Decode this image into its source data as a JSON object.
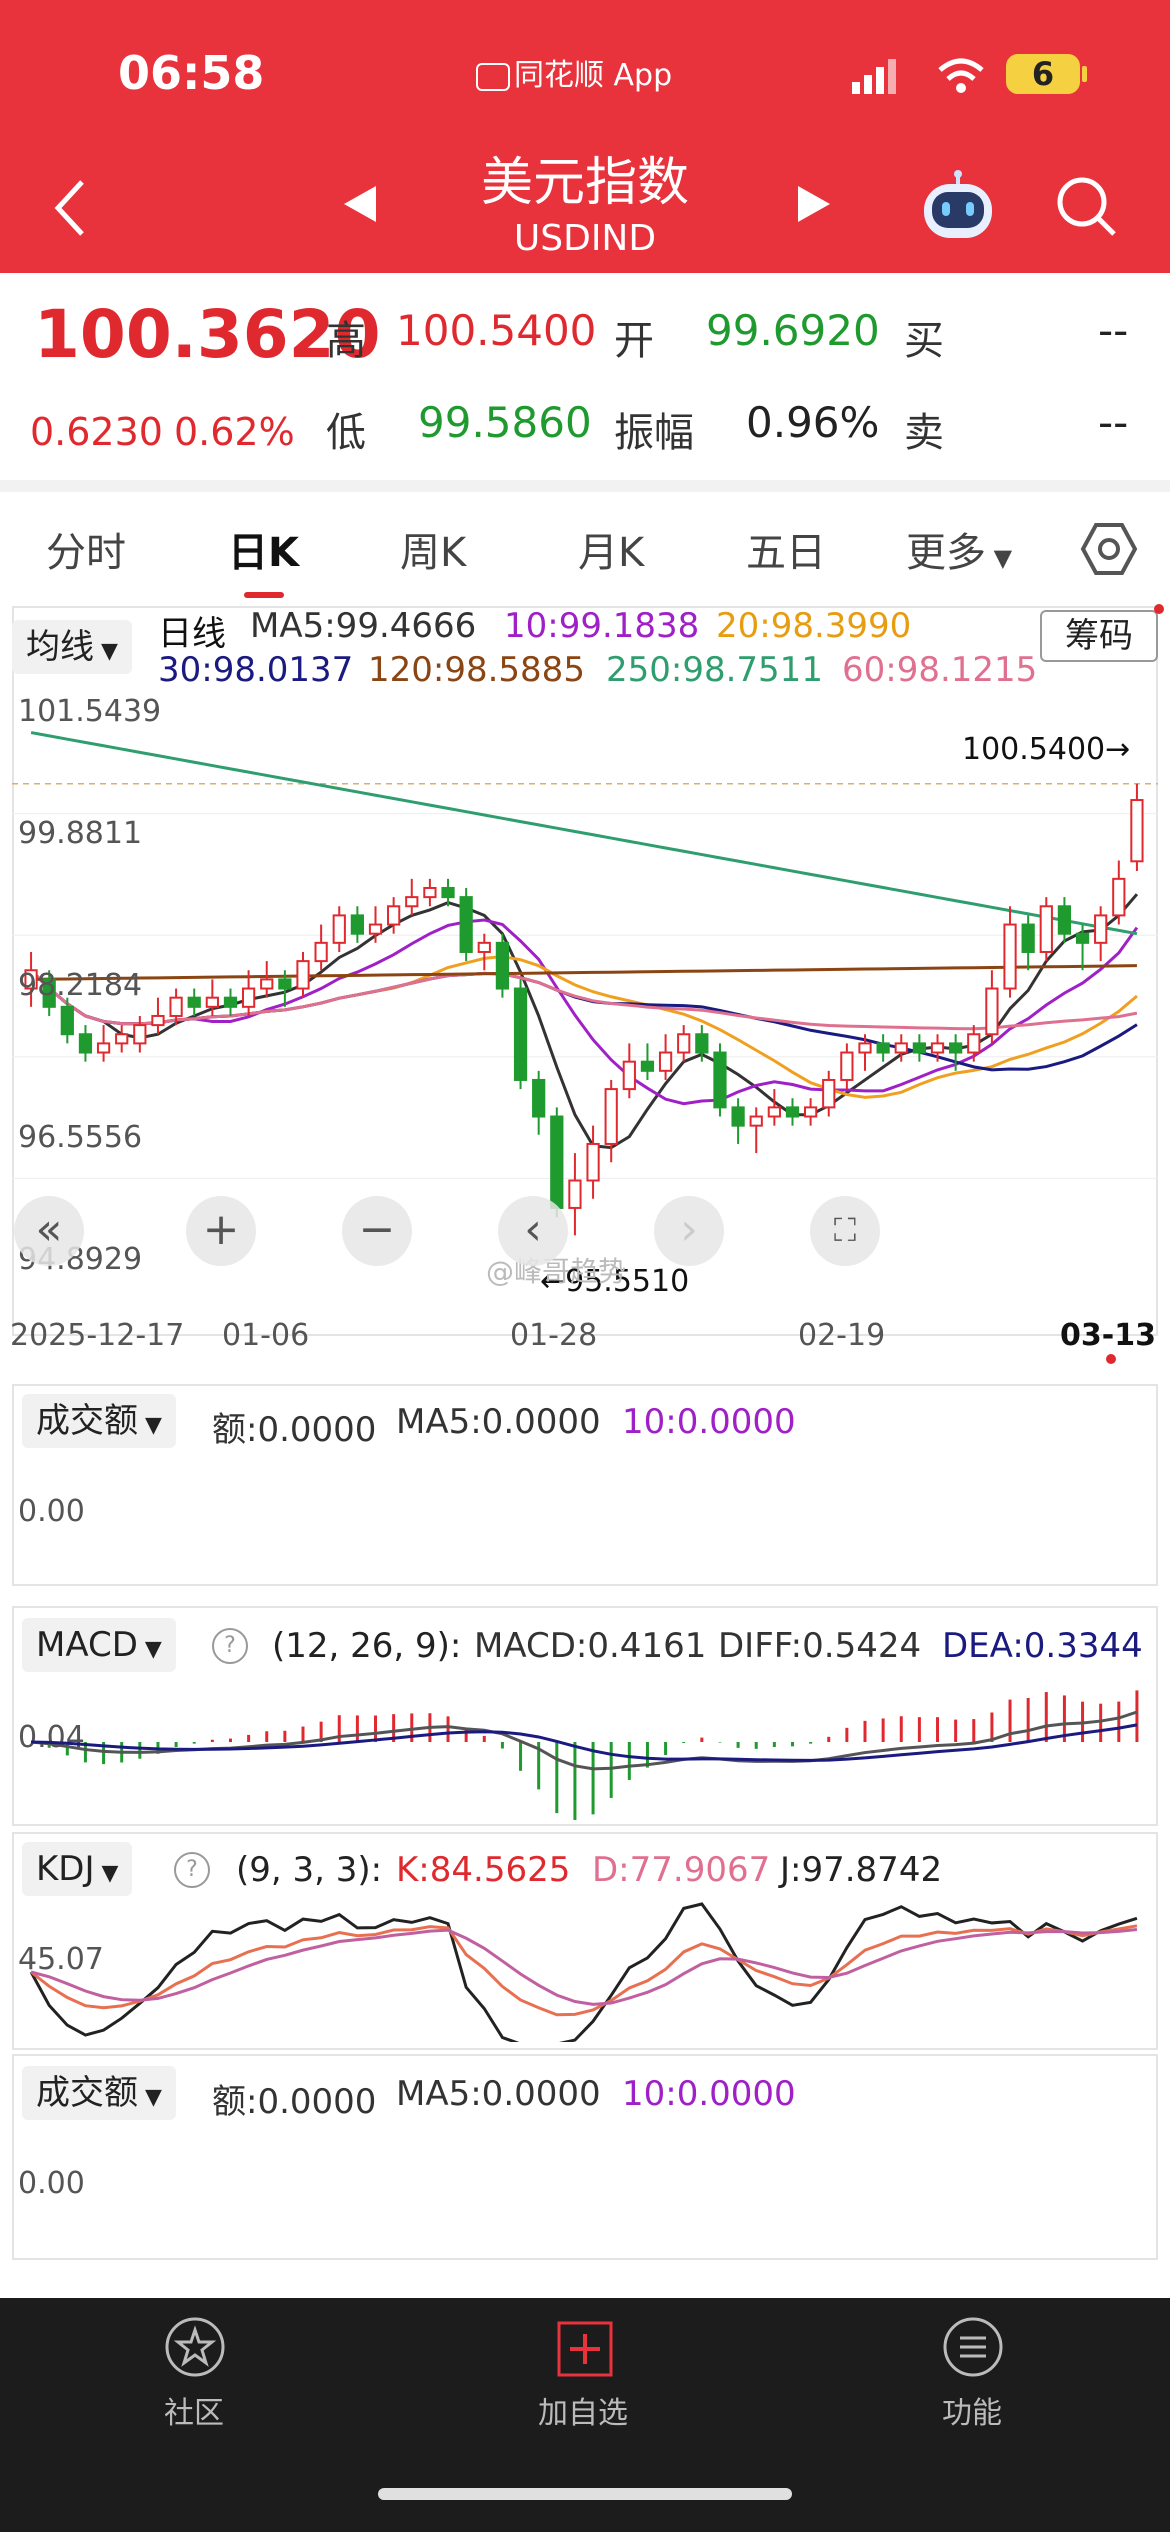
{
  "status_bar": {
    "time": "06:58",
    "app_name": "同花顺 App",
    "battery": "6"
  },
  "header": {
    "title": "美元指数",
    "code": "USDIND"
  },
  "quote": {
    "price": "100.3620",
    "change": "0.6230",
    "change_pct": "0.62%",
    "high_label": "高",
    "high": "100.5400",
    "open_label": "开",
    "open": "99.6920",
    "buy_label": "买",
    "buy": "--",
    "low_label": "低",
    "low": "99.5860",
    "amp_label": "振幅",
    "amp": "0.96%",
    "sell_label": "卖",
    "sell": "--"
  },
  "tabs": [
    "分时",
    "日K",
    "周K",
    "月K",
    "五日",
    "更多"
  ],
  "active_tab": "日K",
  "main_chart": {
    "ma_button": "均线",
    "chip_button": "筹码",
    "period_label": "日线",
    "ma5": "MA5:99.4666",
    "ma10": "10:99.1838",
    "ma20": "20:98.3990",
    "ma30": "30:98.0137",
    "ma120": "120:98.5885",
    "ma250": "250:98.7511",
    "ma60": "60:98.1215",
    "y_ticks": [
      "101.5439",
      "99.8811",
      "98.2184",
      "96.5556",
      "94.8929"
    ],
    "high_marker": "100.5400→",
    "low_marker": "←95.5510",
    "x_ticks": [
      "2025-12-17",
      "01-06",
      "01-28",
      "02-19",
      "03-13"
    ],
    "watermark": "@峰哥趋势"
  },
  "volume_panel": {
    "button": "成交额",
    "amount": "额:0.0000",
    "ma5": "MA5:0.0000",
    "ma10": "10:0.0000",
    "y_tick": "0.00"
  },
  "macd_panel": {
    "button": "MACD",
    "params": "(12, 26, 9):",
    "macd": "MACD:0.4161",
    "diff": "DIFF:0.5424",
    "dea": "DEA:0.3344",
    "y_tick": "0.04"
  },
  "kdj_panel": {
    "button": "KDJ",
    "params": "(9, 3, 3):",
    "k": "K:84.5625",
    "d": "D:77.9067",
    "j": "J:97.8742",
    "y_tick": "45.07"
  },
  "volume_panel2": {
    "button": "成交额",
    "amount": "额:0.0000",
    "ma5": "MA5:0.0000",
    "ma10": "10:0.0000",
    "y_tick": "0.00"
  },
  "bottom_nav": [
    {
      "label": "社区",
      "icon": "community-icon"
    },
    {
      "label": "加自选",
      "icon": "add-watchlist-icon"
    },
    {
      "label": "功能",
      "icon": "menu-icon"
    }
  ],
  "colors": {
    "up": "#e0292f",
    "down": "#1f9a2e",
    "header": "#e8323c",
    "ma5": "#333333",
    "ma10": "#a020c8",
    "ma20": "#f0a020",
    "ma30": "#1a1a80",
    "ma120": "#8b4513",
    "ma250": "#2e9e6e",
    "ma60": "#e07090"
  },
  "chart_data": {
    "type": "candlestick",
    "title": "",
    "y_range": [
      94.8929,
      101.5439
    ],
    "candles": [
      {
        "o": 98.3,
        "c": 98.5,
        "h": 98.7,
        "l": 98.1
      },
      {
        "o": 98.4,
        "c": 98.1,
        "h": 98.5,
        "l": 98.0
      },
      {
        "o": 98.1,
        "c": 97.8,
        "h": 98.2,
        "l": 97.7
      },
      {
        "o": 97.8,
        "c": 97.6,
        "h": 97.9,
        "l": 97.5
      },
      {
        "o": 97.6,
        "c": 97.7,
        "h": 97.9,
        "l": 97.5
      },
      {
        "o": 97.7,
        "c": 97.8,
        "h": 97.9,
        "l": 97.6
      },
      {
        "o": 97.7,
        "c": 97.9,
        "h": 98.0,
        "l": 97.6
      },
      {
        "o": 97.9,
        "c": 98.0,
        "h": 98.2,
        "l": 97.8
      },
      {
        "o": 98.0,
        "c": 98.2,
        "h": 98.3,
        "l": 97.9
      },
      {
        "o": 98.2,
        "c": 98.1,
        "h": 98.3,
        "l": 98.0
      },
      {
        "o": 98.1,
        "c": 98.2,
        "h": 98.4,
        "l": 98.0
      },
      {
        "o": 98.2,
        "c": 98.1,
        "h": 98.3,
        "l": 98.0
      },
      {
        "o": 98.1,
        "c": 98.3,
        "h": 98.5,
        "l": 98.0
      },
      {
        "o": 98.3,
        "c": 98.4,
        "h": 98.6,
        "l": 98.2
      },
      {
        "o": 98.4,
        "c": 98.3,
        "h": 98.5,
        "l": 98.1
      },
      {
        "o": 98.3,
        "c": 98.6,
        "h": 98.7,
        "l": 98.2
      },
      {
        "o": 98.6,
        "c": 98.8,
        "h": 99.0,
        "l": 98.5
      },
      {
        "o": 98.8,
        "c": 99.1,
        "h": 99.2,
        "l": 98.7
      },
      {
        "o": 99.1,
        "c": 98.9,
        "h": 99.2,
        "l": 98.8
      },
      {
        "o": 98.9,
        "c": 99.0,
        "h": 99.2,
        "l": 98.8
      },
      {
        "o": 99.0,
        "c": 99.2,
        "h": 99.3,
        "l": 98.9
      },
      {
        "o": 99.2,
        "c": 99.3,
        "h": 99.5,
        "l": 99.1
      },
      {
        "o": 99.3,
        "c": 99.4,
        "h": 99.5,
        "l": 99.2
      },
      {
        "o": 99.4,
        "c": 99.3,
        "h": 99.5,
        "l": 99.2
      },
      {
        "o": 99.3,
        "c": 98.7,
        "h": 99.4,
        "l": 98.6
      },
      {
        "o": 98.7,
        "c": 98.8,
        "h": 98.9,
        "l": 98.5
      },
      {
        "o": 98.8,
        "c": 98.3,
        "h": 98.9,
        "l": 98.2
      },
      {
        "o": 98.3,
        "c": 97.3,
        "h": 98.4,
        "l": 97.2
      },
      {
        "o": 97.3,
        "c": 96.9,
        "h": 97.4,
        "l": 96.7
      },
      {
        "o": 96.9,
        "c": 95.9,
        "h": 97.0,
        "l": 95.8
      },
      {
        "o": 95.9,
        "c": 96.2,
        "h": 96.5,
        "l": 95.6
      },
      {
        "o": 96.2,
        "c": 96.6,
        "h": 96.8,
        "l": 96.0
      },
      {
        "o": 96.6,
        "c": 97.2,
        "h": 97.3,
        "l": 96.4
      },
      {
        "o": 97.2,
        "c": 97.5,
        "h": 97.7,
        "l": 97.1
      },
      {
        "o": 97.5,
        "c": 97.4,
        "h": 97.7,
        "l": 97.3
      },
      {
        "o": 97.4,
        "c": 97.6,
        "h": 97.8,
        "l": 97.3
      },
      {
        "o": 97.6,
        "c": 97.8,
        "h": 97.9,
        "l": 97.5
      },
      {
        "o": 97.8,
        "c": 97.6,
        "h": 97.9,
        "l": 97.5
      },
      {
        "o": 97.6,
        "c": 97.0,
        "h": 97.7,
        "l": 96.9
      },
      {
        "o": 97.0,
        "c": 96.8,
        "h": 97.1,
        "l": 96.6
      },
      {
        "o": 96.8,
        "c": 96.9,
        "h": 97.0,
        "l": 96.5
      },
      {
        "o": 96.9,
        "c": 97.0,
        "h": 97.2,
        "l": 96.8
      },
      {
        "o": 97.0,
        "c": 96.9,
        "h": 97.1,
        "l": 96.8
      },
      {
        "o": 96.9,
        "c": 97.0,
        "h": 97.1,
        "l": 96.8
      },
      {
        "o": 97.0,
        "c": 97.3,
        "h": 97.4,
        "l": 96.9
      },
      {
        "o": 97.3,
        "c": 97.6,
        "h": 97.7,
        "l": 97.2
      },
      {
        "o": 97.6,
        "c": 97.7,
        "h": 97.8,
        "l": 97.4
      },
      {
        "o": 97.7,
        "c": 97.6,
        "h": 97.8,
        "l": 97.5
      },
      {
        "o": 97.6,
        "c": 97.7,
        "h": 97.8,
        "l": 97.5
      },
      {
        "o": 97.7,
        "c": 97.6,
        "h": 97.8,
        "l": 97.5
      },
      {
        "o": 97.6,
        "c": 97.7,
        "h": 97.8,
        "l": 97.5
      },
      {
        "o": 97.7,
        "c": 97.6,
        "h": 97.8,
        "l": 97.4
      },
      {
        "o": 97.6,
        "c": 97.8,
        "h": 97.9,
        "l": 97.5
      },
      {
        "o": 97.8,
        "c": 98.3,
        "h": 98.5,
        "l": 97.7
      },
      {
        "o": 98.3,
        "c": 99.0,
        "h": 99.2,
        "l": 98.2
      },
      {
        "o": 99.0,
        "c": 98.7,
        "h": 99.1,
        "l": 98.5
      },
      {
        "o": 98.7,
        "c": 99.2,
        "h": 99.3,
        "l": 98.6
      },
      {
        "o": 99.2,
        "c": 98.9,
        "h": 99.3,
        "l": 98.8
      },
      {
        "o": 98.9,
        "c": 98.8,
        "h": 99.0,
        "l": 98.5
      },
      {
        "o": 98.8,
        "c": 99.1,
        "h": 99.2,
        "l": 98.6
      },
      {
        "o": 99.1,
        "c": 99.5,
        "h": 99.7,
        "l": 99.0
      },
      {
        "o": 99.692,
        "c": 100.362,
        "h": 100.54,
        "l": 99.586
      }
    ]
  }
}
